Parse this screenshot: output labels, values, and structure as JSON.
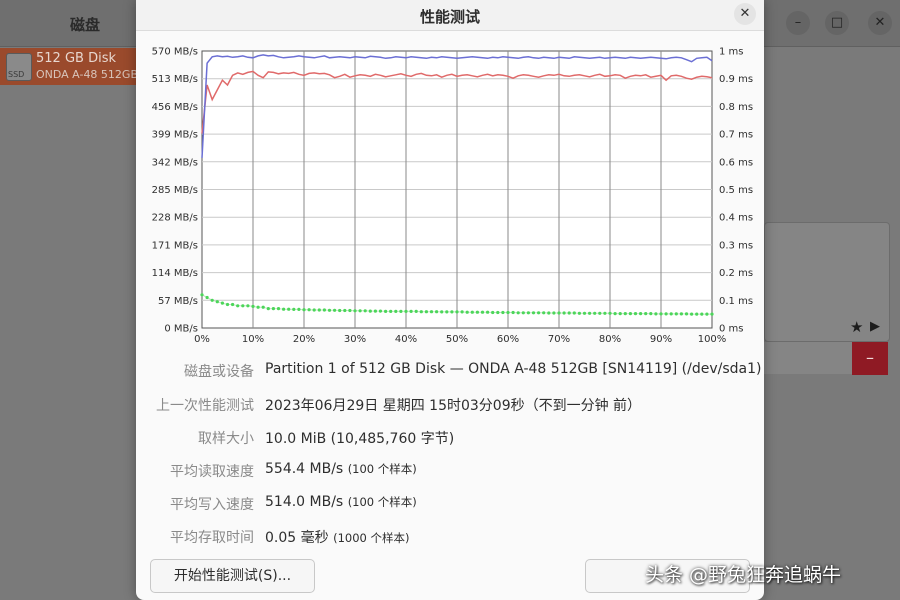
{
  "background_window": {
    "title": "磁盘",
    "disk": {
      "name": "512 GB Disk",
      "model": "ONDA A-48 512GB",
      "icon_label": "SSD"
    },
    "buttons": {
      "minimize": "–",
      "maximize": "□",
      "close": "✕"
    },
    "delete_button": "–"
  },
  "dialog": {
    "title": "性能测试",
    "close_label": "✕",
    "info": [
      {
        "label": "磁盘或设备",
        "value": "Partition 1 of 512 GB Disk — ONDA A-48 512GB [SN14119] (/dev/sda1)",
        "note": ""
      },
      {
        "label": "上一次性能测试",
        "value": "2023年06月29日 星期四 15时03分09秒（不到一分钟 前）",
        "note": ""
      },
      {
        "label": "取样大小",
        "value": "10.0 MiB (10,485,760 字节)",
        "note": ""
      },
      {
        "label": "平均读取速度",
        "value": "554.4 MB/s",
        "note": "(100 个样本)"
      },
      {
        "label": "平均写入速度",
        "value": "514.0 MB/s",
        "note": "(100 个样本)"
      },
      {
        "label": "平均存取时间",
        "value": "0.05 毫秒",
        "note": "(1000 个样本)"
      }
    ],
    "start_button": "开始性能测试(S)...",
    "right_button": ""
  },
  "watermark": "头条 @野兔狂奔追蜗牛",
  "chart_data": {
    "type": "line",
    "left_axis_labels": [
      "570 MB/s",
      "513 MB/s",
      "456 MB/s",
      "399 MB/s",
      "342 MB/s",
      "285 MB/s",
      "228 MB/s",
      "171 MB/s",
      "114 MB/s",
      "57 MB/s",
      "0 MB/s"
    ],
    "right_axis_labels": [
      "1 ms",
      "0.9 ms",
      "0.8 ms",
      "0.7 ms",
      "0.6 ms",
      "0.5 ms",
      "0.4 ms",
      "0.3 ms",
      "0.2 ms",
      "0.1 ms",
      "0 ms"
    ],
    "x_labels": [
      "0%",
      "10%",
      "20%",
      "30%",
      "40%",
      "50%",
      "60%",
      "70%",
      "80%",
      "90%",
      "100%"
    ],
    "ylim_left": [
      0,
      570
    ],
    "ylim_right": [
      0,
      1
    ],
    "xlim": [
      0,
      100
    ],
    "grid": true,
    "colors": {
      "read": "#6b6fd4",
      "write": "#e06a6a",
      "access": "#4cd65a"
    },
    "series": [
      {
        "values": [
          350,
          545,
          558,
          560,
          558,
          559,
          557,
          558,
          560,
          557,
          556,
          560,
          562,
          560,
          561,
          558,
          556,
          557,
          558,
          560,
          558,
          557,
          556,
          558,
          560,
          556,
          557,
          558,
          557,
          556,
          558,
          557,
          556,
          559,
          558,
          557,
          555,
          556,
          558,
          557,
          556,
          558,
          557,
          556,
          555,
          557,
          556,
          558,
          557,
          556,
          555,
          556,
          557,
          558,
          557,
          556,
          555,
          557,
          556,
          558,
          557,
          556,
          555,
          557,
          558,
          556,
          555,
          557,
          556,
          555,
          557,
          556,
          555,
          558,
          557,
          556,
          555,
          556,
          557,
          555,
          556,
          557,
          556,
          555,
          557,
          556,
          555,
          556,
          557,
          556,
          555,
          554,
          556,
          557,
          556,
          552,
          548,
          555,
          556,
          557,
          550
        ]
      },
      {
        "values": [
          400,
          500,
          470,
          490,
          510,
          500,
          520,
          525,
          522,
          526,
          528,
          520,
          515,
          527,
          526,
          523,
          525,
          524,
          526,
          522,
          520,
          524,
          525,
          523,
          524,
          521,
          515,
          518,
          522,
          516,
          519,
          521,
          520,
          518,
          522,
          520,
          517,
          519,
          521,
          523,
          520,
          518,
          522,
          524,
          520,
          519,
          521,
          516,
          520,
          522,
          518,
          520,
          521,
          519,
          517,
          520,
          522,
          519,
          521,
          520,
          518,
          514,
          519,
          521,
          520,
          518,
          516,
          519,
          521,
          520,
          522,
          519,
          518,
          520,
          521,
          519,
          517,
          520,
          522,
          518,
          519,
          521,
          520,
          514,
          518,
          520,
          519,
          521,
          516,
          518,
          520,
          510,
          519,
          520,
          518,
          514,
          512,
          516,
          518,
          517,
          515
        ]
      },
      {
        "values": [
          0.12,
          0.11,
          0.1,
          0.095,
          0.09,
          0.085,
          0.085,
          0.08,
          0.08,
          0.08,
          0.078,
          0.075,
          0.075,
          0.07,
          0.07,
          0.07,
          0.068,
          0.068,
          0.067,
          0.067,
          0.066,
          0.066,
          0.065,
          0.065,
          0.065,
          0.064,
          0.064,
          0.063,
          0.063,
          0.063,
          0.062,
          0.062,
          0.062,
          0.061,
          0.061,
          0.061,
          0.06,
          0.06,
          0.06,
          0.06,
          0.06,
          0.06,
          0.06,
          0.059,
          0.059,
          0.059,
          0.059,
          0.058,
          0.058,
          0.058,
          0.058,
          0.058,
          0.057,
          0.057,
          0.057,
          0.057,
          0.057,
          0.056,
          0.056,
          0.056,
          0.056,
          0.056,
          0.055,
          0.055,
          0.055,
          0.055,
          0.055,
          0.055,
          0.054,
          0.054,
          0.054,
          0.054,
          0.054,
          0.054,
          0.053,
          0.053,
          0.053,
          0.053,
          0.053,
          0.053,
          0.053,
          0.052,
          0.052,
          0.052,
          0.052,
          0.052,
          0.052,
          0.052,
          0.052,
          0.051,
          0.051,
          0.051,
          0.051,
          0.051,
          0.051,
          0.051,
          0.05,
          0.05,
          0.05,
          0.05,
          0.05
        ]
      }
    ]
  }
}
